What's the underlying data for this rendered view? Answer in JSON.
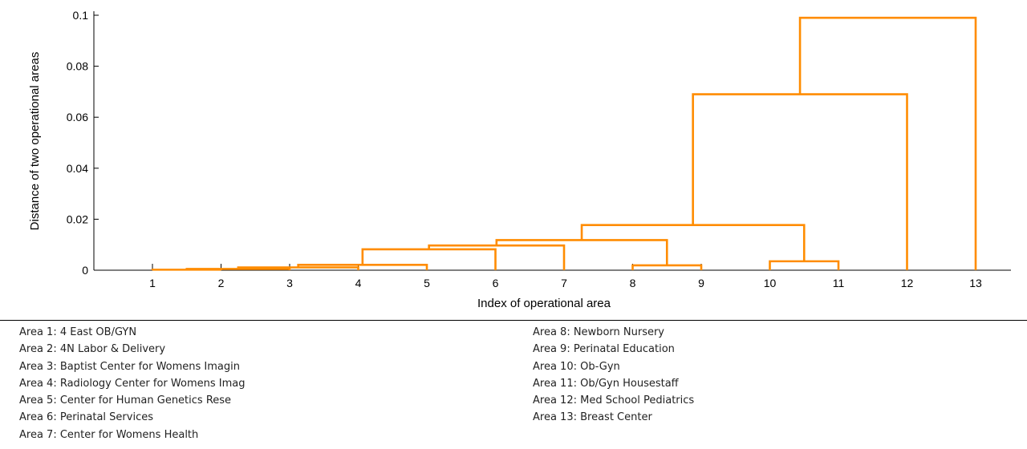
{
  "chart_data": {
    "type": "dendrogram",
    "title": "",
    "xlabel": "Index of operational area",
    "ylabel": "Distance of two operational areas",
    "ylim": [
      0,
      0.1
    ],
    "yticks": [
      {
        "value": 0,
        "label": "0"
      },
      {
        "value": 0.02,
        "label": "0.02"
      },
      {
        "value": 0.04,
        "label": "0.04"
      },
      {
        "value": 0.06,
        "label": "0.06"
      },
      {
        "value": 0.08,
        "label": "0.08"
      },
      {
        "value": 0.1,
        "label": "0.1"
      }
    ],
    "leaves": [
      "1",
      "2",
      "3",
      "4",
      "5",
      "6",
      "7",
      "8",
      "9",
      "10",
      "11",
      "12",
      "13"
    ],
    "color": "#ff8c00",
    "merges": [
      {
        "left": [
          "1"
        ],
        "right": [
          "2"
        ],
        "height": 0.0002
      },
      {
        "left": [
          "1",
          "2"
        ],
        "right": [
          "3"
        ],
        "height": 0.0005
      },
      {
        "left": [
          "1",
          "2",
          "3"
        ],
        "right": [
          "4"
        ],
        "height": 0.0011
      },
      {
        "left": [
          "1",
          "2",
          "3",
          "4"
        ],
        "right": [
          "5"
        ],
        "height": 0.0021
      },
      {
        "left": [
          "1",
          "2",
          "3",
          "4",
          "5"
        ],
        "right": [
          "6"
        ],
        "height": 0.0082
      },
      {
        "left": [
          "8"
        ],
        "right": [
          "9"
        ],
        "height": 0.0019
      },
      {
        "left": [
          "1",
          "2",
          "3",
          "4",
          "5",
          "6"
        ],
        "right": [
          "7"
        ],
        "height": 0.0097
      },
      {
        "left": [
          "1",
          "2",
          "3",
          "4",
          "5",
          "6",
          "7"
        ],
        "right": [
          "8",
          "9"
        ],
        "height": 0.0118
      },
      {
        "left": [
          "10"
        ],
        "right": [
          "11"
        ],
        "height": 0.0035
      },
      {
        "left": [
          "1",
          "2",
          "3",
          "4",
          "5",
          "6",
          "7",
          "8",
          "9"
        ],
        "right": [
          "10",
          "11"
        ],
        "height": 0.0177
      },
      {
        "left": [
          "1",
          "2",
          "3",
          "4",
          "5",
          "6",
          "7",
          "8",
          "9",
          "10",
          "11"
        ],
        "right": [
          "12"
        ],
        "height": 0.069
      },
      {
        "left": [
          "1",
          "2",
          "3",
          "4",
          "5",
          "6",
          "7",
          "8",
          "9",
          "10",
          "11",
          "12"
        ],
        "right": [
          "13"
        ],
        "height": 0.099
      }
    ]
  },
  "area_legend": {
    "left": [
      "Area 1: 4 East OB/GYN",
      "Area 2: 4N Labor & Delivery",
      "Area 3: Baptist Center for Womens Imagin",
      "Area 4: Radiology Center for Womens Imag",
      "Area 5: Center for Human Genetics Rese",
      "Area 6: Perinatal Services",
      "Area 7: Center for Womens Health"
    ],
    "right": [
      "Area 8: Newborn Nursery",
      "Area 9: Perinatal Education",
      "Area 10: Ob-Gyn",
      "Area 11: Ob/Gyn Housestaff",
      "Area 12: Med School Pediatrics",
      "Area 13: Breast Center"
    ]
  }
}
